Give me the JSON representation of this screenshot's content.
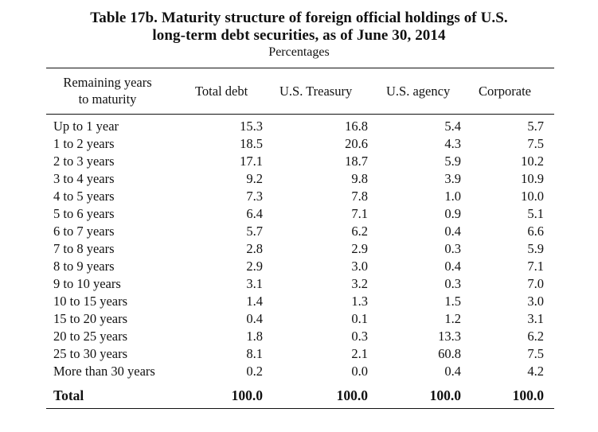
{
  "title": {
    "line1": "Table 17b. Maturity structure of foreign official holdings of U.S.",
    "line2": "long-term debt securities, as of June 30, 2014",
    "subtitle": "Percentages"
  },
  "header": {
    "label_line1": "Remaining years",
    "label_line2": "to maturity",
    "columns": [
      "Total debt",
      "U.S. Treasury",
      "U.S. agency",
      "Corporate"
    ]
  },
  "rows": [
    {
      "label": "Up to 1 year",
      "values": [
        "15.3",
        "16.8",
        "5.4",
        "5.7"
      ]
    },
    {
      "label": "1 to 2 years",
      "values": [
        "18.5",
        "20.6",
        "4.3",
        "7.5"
      ]
    },
    {
      "label": "2 to 3 years",
      "values": [
        "17.1",
        "18.7",
        "5.9",
        "10.2"
      ]
    },
    {
      "label": "3 to 4 years",
      "values": [
        "9.2",
        "9.8",
        "3.9",
        "10.9"
      ]
    },
    {
      "label": "4 to 5 years",
      "values": [
        "7.3",
        "7.8",
        "1.0",
        "10.0"
      ]
    },
    {
      "label": "5 to 6 years",
      "values": [
        "6.4",
        "7.1",
        "0.9",
        "5.1"
      ]
    },
    {
      "label": "6 to 7 years",
      "values": [
        "5.7",
        "6.2",
        "0.4",
        "6.6"
      ]
    },
    {
      "label": "7 to 8 years",
      "values": [
        "2.8",
        "2.9",
        "0.3",
        "5.9"
      ]
    },
    {
      "label": "8 to 9 years",
      "values": [
        "2.9",
        "3.0",
        "0.4",
        "7.1"
      ]
    },
    {
      "label": "9 to 10 years",
      "values": [
        "3.1",
        "3.2",
        "0.3",
        "7.0"
      ]
    },
    {
      "label": "10 to 15 years",
      "values": [
        "1.4",
        "1.3",
        "1.5",
        "3.0"
      ]
    },
    {
      "label": "15 to 20 years",
      "values": [
        "0.4",
        "0.1",
        "1.2",
        "3.1"
      ]
    },
    {
      "label": "20 to 25 years",
      "values": [
        "1.8",
        "0.3",
        "13.3",
        "6.2"
      ]
    },
    {
      "label": "25 to 30 years",
      "values": [
        "8.1",
        "2.1",
        "60.8",
        "7.5"
      ]
    },
    {
      "label": "More than 30 years",
      "values": [
        "0.2",
        "0.0",
        "0.4",
        "4.2"
      ]
    }
  ],
  "total": {
    "label": "Total",
    "values": [
      "100.0",
      "100.0",
      "100.0",
      "100.0"
    ]
  }
}
